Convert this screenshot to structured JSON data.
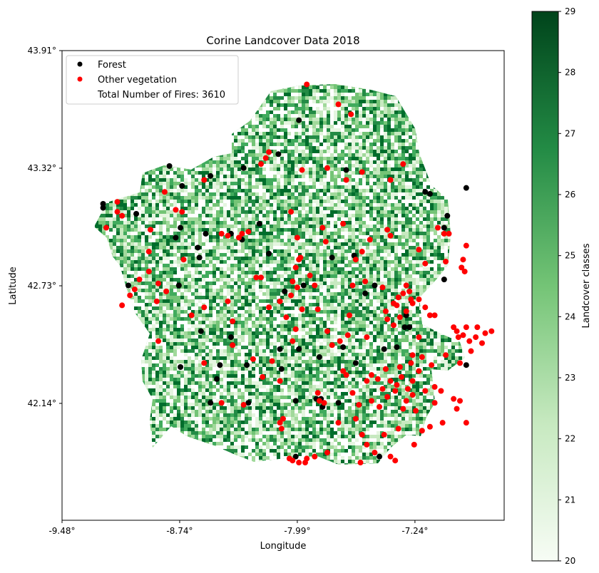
{
  "chart_data": {
    "type": "scatter",
    "title": "Corine Landcover Data 2018",
    "xlabel": "Longitude",
    "ylabel": "Latitude",
    "x_ticks": [
      "-9.48°",
      "-8.74°",
      "-7.99°",
      "-7.24°"
    ],
    "y_ticks": [
      "43.91°",
      "43.32°",
      "42.73°",
      "42.14°"
    ],
    "xlim": [
      -9.48,
      -6.68
    ],
    "ylim": [
      41.55,
      43.91
    ],
    "legend": {
      "placement": "top-left",
      "entries": [
        "Forest",
        "Other vegetation",
        "Total Number of Fires: 3610"
      ]
    },
    "colorbar": {
      "label": "Landcover classes",
      "ticks": [
        "20",
        "21",
        "22",
        "23",
        "24",
        "25",
        "26",
        "27",
        "28",
        "29"
      ],
      "range": [
        20,
        29
      ],
      "colors": [
        "#f7fcf5",
        "#c7e9c0",
        "#74c476",
        "#238b45",
        "#00441b"
      ]
    },
    "total_fires": 3610,
    "series": [
      {
        "name": "Forest",
        "color": "#000000",
        "points": [
          [
            -7.98,
            43.56
          ],
          [
            -8.8,
            43.33
          ],
          [
            -8.54,
            43.28
          ],
          [
            -8.72,
            43.23
          ],
          [
            -9.22,
            43.14
          ],
          [
            -9.22,
            43.12
          ],
          [
            -8.73,
            43.02
          ],
          [
            -8.76,
            42.97
          ],
          [
            -8.57,
            42.99
          ],
          [
            -8.62,
            42.92
          ],
          [
            -8.61,
            42.87
          ],
          [
            -8.41,
            42.99
          ],
          [
            -8.34,
            42.96
          ],
          [
            -7.63,
            42.88
          ],
          [
            -7.77,
            42.87
          ],
          [
            -7.06,
            42.76
          ],
          [
            -7.5,
            42.73
          ],
          [
            -7.95,
            42.73
          ],
          [
            -8.07,
            42.7
          ],
          [
            -7.56,
            42.69
          ],
          [
            -7.31,
            42.52
          ],
          [
            -9.06,
            42.73
          ],
          [
            -8.74,
            42.73
          ],
          [
            -8.6,
            42.5
          ],
          [
            -8.41,
            42.47
          ],
          [
            -8.1,
            42.41
          ],
          [
            -7.98,
            42.41
          ],
          [
            -7.85,
            42.37
          ],
          [
            -7.7,
            42.42
          ],
          [
            -7.44,
            42.41
          ],
          [
            -8.73,
            42.32
          ],
          [
            -8.48,
            42.33
          ],
          [
            -8.31,
            42.33
          ],
          [
            -8.09,
            42.31
          ],
          [
            -7.62,
            42.34
          ],
          [
            -7.36,
            42.42
          ],
          [
            -8.5,
            42.26
          ],
          [
            -8.54,
            42.14
          ],
          [
            -7.73,
            42.14
          ],
          [
            -8.3,
            42.14
          ],
          [
            -8.0,
            42.15
          ],
          [
            -7.87,
            42.16
          ],
          [
            -7.83,
            42.12
          ],
          [
            -8.0,
            41.87
          ],
          [
            -7.47,
            41.87
          ],
          [
            -7.84,
            42.16
          ],
          [
            -7.18,
            43.2
          ],
          [
            -7.15,
            43.19
          ],
          [
            -7.04,
            43.08
          ],
          [
            -6.92,
            43.22
          ],
          [
            -7.06,
            43.02
          ],
          [
            -8.33,
            43.32
          ],
          [
            -8.11,
            43.39
          ],
          [
            -7.68,
            43.31
          ],
          [
            -8.23,
            43.04
          ],
          [
            -8.17,
            42.89
          ],
          [
            -9.01,
            43.09
          ],
          [
            -6.92,
            42.33
          ],
          [
            -7.28,
            42.52
          ],
          [
            -7.3,
            42.58
          ]
        ]
      },
      {
        "name": "Other vegetation",
        "color": "#ff0000",
        "points": [
          [
            -7.93,
            43.74
          ],
          [
            -7.73,
            43.64
          ],
          [
            -7.65,
            43.59
          ],
          [
            -8.17,
            43.4
          ],
          [
            -8.19,
            43.37
          ],
          [
            -8.22,
            43.34
          ],
          [
            -7.96,
            43.31
          ],
          [
            -7.8,
            43.32
          ],
          [
            -7.58,
            43.3
          ],
          [
            -7.4,
            43.26
          ],
          [
            -7.32,
            43.34
          ],
          [
            -7.68,
            43.26
          ],
          [
            -8.58,
            43.26
          ],
          [
            -8.83,
            43.2
          ],
          [
            -9.13,
            43.15
          ],
          [
            -9.1,
            43.08
          ],
          [
            -8.72,
            43.1
          ],
          [
            -8.3,
            43.0
          ],
          [
            -8.34,
            42.99
          ],
          [
            -8.36,
            42.97
          ],
          [
            -7.99,
            42.97
          ],
          [
            -7.83,
            43.02
          ],
          [
            -7.7,
            43.04
          ],
          [
            -7.42,
            43.01
          ],
          [
            -7.53,
            42.96
          ],
          [
            -7.1,
            43.02
          ],
          [
            -7.06,
            42.99
          ],
          [
            -6.92,
            42.93
          ],
          [
            -6.94,
            42.86
          ],
          [
            -6.95,
            42.82
          ],
          [
            -8.0,
            42.82
          ],
          [
            -7.98,
            42.86
          ],
          [
            -7.97,
            42.87
          ],
          [
            -8.22,
            42.77
          ],
          [
            -8.02,
            42.75
          ],
          [
            -7.99,
            42.72
          ],
          [
            -7.91,
            42.78
          ],
          [
            -7.88,
            42.73
          ],
          [
            -7.66,
            42.58
          ],
          [
            -7.56,
            42.75
          ],
          [
            -7.45,
            42.72
          ],
          [
            -9.1,
            42.63
          ],
          [
            -9.05,
            42.68
          ],
          [
            -9.02,
            42.71
          ],
          [
            -8.99,
            42.76
          ],
          [
            -8.93,
            42.8
          ],
          [
            -8.87,
            42.74
          ],
          [
            -8.88,
            42.65
          ],
          [
            -8.82,
            42.7
          ],
          [
            -8.58,
            42.62
          ],
          [
            -8.43,
            42.65
          ],
          [
            -8.4,
            42.55
          ],
          [
            -8.17,
            42.62
          ],
          [
            -8.1,
            42.65
          ],
          [
            -8.03,
            42.68
          ],
          [
            -7.96,
            42.61
          ],
          [
            -8.06,
            42.57
          ],
          [
            -8.0,
            42.51
          ],
          [
            -7.55,
            42.47
          ],
          [
            -7.67,
            42.48
          ],
          [
            -7.42,
            42.56
          ],
          [
            -7.43,
            42.6
          ],
          [
            -7.38,
            42.64
          ],
          [
            -7.35,
            42.67
          ],
          [
            -7.32,
            42.69
          ],
          [
            -7.28,
            42.7
          ],
          [
            -7.26,
            42.64
          ],
          [
            -7.22,
            42.66
          ],
          [
            -7.18,
            42.62
          ],
          [
            -7.15,
            42.58
          ],
          [
            -7.3,
            42.6
          ],
          [
            -7.34,
            42.57
          ],
          [
            -7.38,
            42.53
          ],
          [
            -7.22,
            42.47
          ],
          [
            -7.12,
            42.58
          ],
          [
            -7.27,
            42.66
          ],
          [
            -7.36,
            42.63
          ],
          [
            -7.3,
            42.73
          ],
          [
            -6.98,
            42.5
          ],
          [
            -6.94,
            42.48
          ],
          [
            -6.9,
            42.45
          ],
          [
            -6.86,
            42.47
          ],
          [
            -6.82,
            42.44
          ],
          [
            -6.8,
            42.49
          ],
          [
            -6.85,
            42.52
          ],
          [
            -6.92,
            42.52
          ],
          [
            -6.97,
            42.47
          ],
          [
            -6.89,
            42.4
          ],
          [
            -7.0,
            42.52
          ],
          [
            -6.76,
            42.5
          ],
          [
            -7.52,
            42.28
          ],
          [
            -7.48,
            42.26
          ],
          [
            -7.45,
            42.21
          ],
          [
            -7.4,
            42.25
          ],
          [
            -7.37,
            42.2
          ],
          [
            -7.33,
            42.27
          ],
          [
            -7.29,
            42.21
          ],
          [
            -7.26,
            42.25
          ],
          [
            -7.22,
            42.3
          ],
          [
            -7.26,
            42.18
          ],
          [
            -7.3,
            42.15
          ],
          [
            -7.36,
            42.23
          ],
          [
            -7.42,
            42.17
          ],
          [
            -7.47,
            42.12
          ],
          [
            -7.52,
            42.15
          ],
          [
            -7.32,
            42.11
          ],
          [
            -7.27,
            42.34
          ],
          [
            -7.34,
            42.32
          ],
          [
            -7.43,
            42.31
          ],
          [
            -7.24,
            42.1
          ],
          [
            -7.12,
            42.14
          ],
          [
            -6.96,
            42.15
          ],
          [
            -6.92,
            42.04
          ],
          [
            -6.98,
            42.11
          ],
          [
            -7.18,
            42.2
          ],
          [
            -7.12,
            42.22
          ],
          [
            -7.08,
            42.2
          ],
          [
            -7.0,
            42.16
          ],
          [
            -7.15,
            42.02
          ],
          [
            -7.07,
            42.04
          ],
          [
            -7.2,
            42.0
          ],
          [
            -7.58,
            41.98
          ],
          [
            -7.55,
            41.93
          ],
          [
            -7.5,
            41.89
          ],
          [
            -7.59,
            41.84
          ],
          [
            -7.4,
            41.87
          ],
          [
            -7.37,
            41.85
          ],
          [
            -7.25,
            41.93
          ],
          [
            -8.08,
            42.06
          ],
          [
            -8.09,
            42.01
          ],
          [
            -8.1,
            42.04
          ],
          [
            -7.85,
            42.15
          ],
          [
            -7.82,
            42.14
          ],
          [
            -7.86,
            42.19
          ],
          [
            -8.04,
            41.86
          ],
          [
            -8.02,
            41.85
          ],
          [
            -7.98,
            41.84
          ],
          [
            -7.94,
            41.84
          ],
          [
            -7.93,
            41.86
          ],
          [
            -7.88,
            41.87
          ],
          [
            -7.8,
            41.89
          ],
          [
            -7.62,
            42.06
          ],
          [
            -7.73,
            42.04
          ],
          [
            -8.21,
            42.27
          ],
          [
            -8.1,
            42.25
          ],
          [
            -8.33,
            42.13
          ],
          [
            -8.47,
            42.14
          ],
          [
            -7.8,
            42.5
          ],
          [
            -7.72,
            42.45
          ],
          [
            -8.02,
            42.45
          ],
          [
            -8.27,
            42.36
          ],
          [
            -8.15,
            42.35
          ],
          [
            -8.4,
            42.43
          ],
          [
            -8.58,
            42.34
          ],
          [
            -8.66,
            42.58
          ],
          [
            -8.93,
            42.9
          ],
          [
            -8.92,
            43.01
          ],
          [
            -9.13,
            43.1
          ],
          [
            -9.2,
            43.02
          ],
          [
            -8.76,
            43.11
          ],
          [
            -8.25,
            42.77
          ],
          [
            -8.71,
            42.86
          ],
          [
            -7.18,
            42.84
          ],
          [
            -7.22,
            42.91
          ],
          [
            -7.03,
            42.99
          ],
          [
            -7.05,
            42.85
          ],
          [
            -6.93,
            42.8
          ],
          [
            -7.4,
            42.98
          ],
          [
            -7.81,
            42.95
          ],
          [
            -7.62,
            42.86
          ],
          [
            -7.64,
            42.73
          ],
          [
            -7.86,
            42.61
          ],
          [
            -7.68,
            42.28
          ],
          [
            -7.7,
            42.3
          ],
          [
            -7.64,
            42.19
          ],
          [
            -7.6,
            42.13
          ],
          [
            -7.55,
            42.25
          ],
          [
            -7.35,
            42.01
          ],
          [
            -7.44,
            41.98
          ],
          [
            -7.26,
            42.38
          ],
          [
            -7.14,
            42.33
          ],
          [
            -7.05,
            42.38
          ],
          [
            -6.96,
            42.34
          ],
          [
            -7.2,
            42.37
          ],
          [
            -7.58,
            42.9
          ],
          [
            -8.03,
            43.1
          ],
          [
            -7.77,
            42.43
          ],
          [
            -8.47,
            42.99
          ],
          [
            -8.43,
            42.98
          ],
          [
            -8.87,
            42.45
          ]
        ]
      }
    ]
  }
}
